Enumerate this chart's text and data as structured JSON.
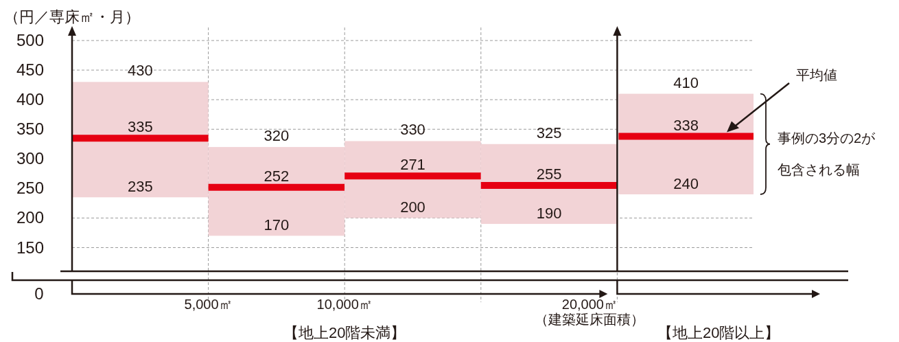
{
  "chart_data": {
    "type": "box",
    "ylabel": "（円／専床㎡・月）",
    "xlabel": "（建築延床面積）",
    "categories": [
      null,
      null,
      null,
      null,
      null
    ],
    "series": [
      {
        "color": "#f2d3d6",
        "boxes": [
          {
            "low": 235,
            "q1": 235,
            "median": 335,
            "q3": 430,
            "high": 430
          },
          {
            "low": 170,
            "q1": 170,
            "median": 252,
            "q3": 320,
            "high": 320
          },
          {
            "low": 200,
            "q1": 200,
            "median": 271,
            "q3": 330,
            "high": 330
          },
          {
            "low": 190,
            "q1": 190,
            "median": 255,
            "q3": 325,
            "high": 325
          },
          {
            "low": 240,
            "q1": 240,
            "median": 338,
            "q3": 410,
            "high": 410
          }
        ]
      }
    ],
    "ylim": [
      110,
      500
    ],
    "yticks": [
      150,
      200,
      250,
      300,
      350,
      400,
      450,
      500
    ],
    "grid": true,
    "tick_labels": "y",
    "annotations": [
      "5,000㎡",
      "10,000㎡",
      "20,000㎡",
      "0",
      "【地上20階未満】",
      "【地上20階以上】",
      "平均値",
      "事例の3分の2が包含される幅",
      {
        "text": "430",
        "y": 430
      },
      {
        "text": "335",
        "y": 335
      },
      {
        "text": "235",
        "y": 235
      },
      {
        "text": "320",
        "y": 320
      },
      {
        "text": "252",
        "y": 252
      },
      {
        "text": "170",
        "y": 170
      },
      {
        "text": "330",
        "y": 330
      },
      {
        "text": "271",
        "y": 271
      },
      {
        "text": "200",
        "y": 200
      },
      {
        "text": "325",
        "y": 325
      },
      {
        "text": "255",
        "y": 255
      },
      {
        "text": "190",
        "y": 190
      },
      {
        "text": "410",
        "y": 410
      },
      {
        "text": "338",
        "y": 338
      },
      {
        "text": "240",
        "y": 240
      }
    ]
  }
}
